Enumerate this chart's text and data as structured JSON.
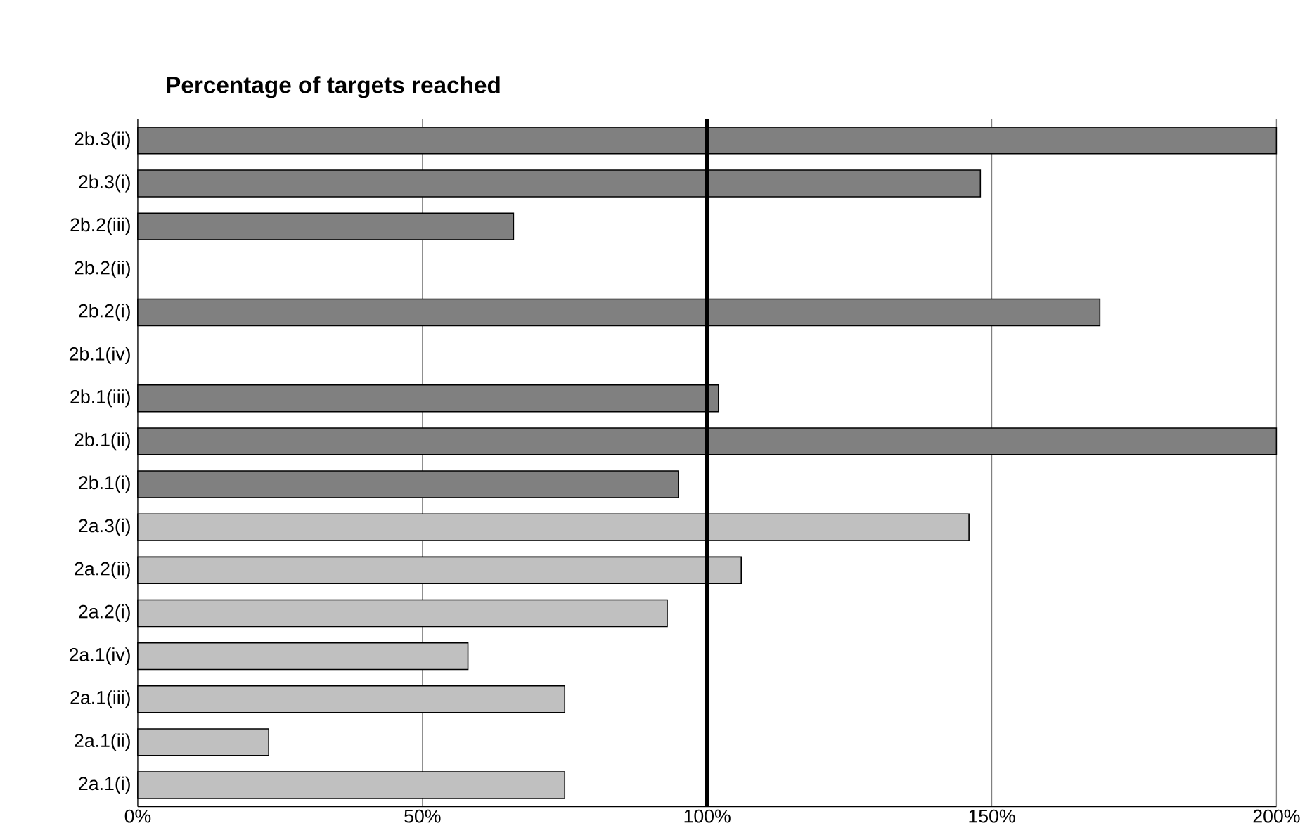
{
  "chart_data": {
    "type": "bar",
    "orientation": "horizontal",
    "title": "Percentage of targets reached",
    "categories": [
      "2b.3(ii)",
      "2b.3(i)",
      "2b.2(iii)",
      "2b.2(ii)",
      "2b.2(i)",
      "2b.1(iv)",
      "2b.1(iii)",
      "2b.1(ii)",
      "2b.1(i)",
      "2a.3(i)",
      "2a.2(ii)",
      "2a.2(i)",
      "2a.1(iv)",
      "2a.1(iii)",
      "2a.1(ii)",
      "2a.1(i)"
    ],
    "values": [
      200,
      148,
      66,
      null,
      169,
      null,
      102,
      200,
      95,
      146,
      106,
      93,
      58,
      75,
      23,
      75
    ],
    "colors": [
      "#808080",
      "#808080",
      "#808080",
      "#808080",
      "#808080",
      "#808080",
      "#808080",
      "#808080",
      "#808080",
      "#c0c0c0",
      "#c0c0c0",
      "#c0c0c0",
      "#c0c0c0",
      "#c0c0c0",
      "#c0c0c0",
      "#c0c0c0"
    ],
    "xlim": [
      0,
      200
    ],
    "xticks": [
      {
        "value": 0,
        "label": "0%"
      },
      {
        "value": 50,
        "label": "50%"
      },
      {
        "value": 100,
        "label": "100%"
      },
      {
        "value": 150,
        "label": "150%"
      },
      {
        "value": 200,
        "label": "200%"
      }
    ],
    "ref_lines": [
      {
        "axis": "x",
        "value": 100,
        "color": "#000000"
      }
    ],
    "grid": "x"
  }
}
